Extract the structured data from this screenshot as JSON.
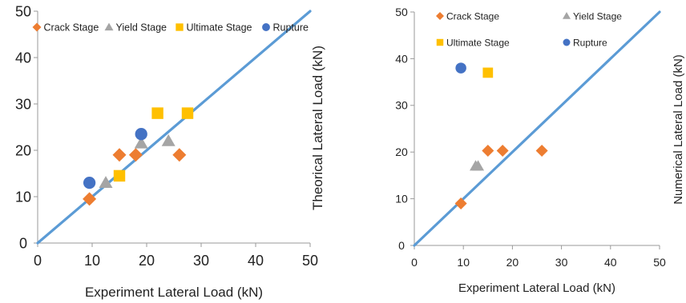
{
  "colors": {
    "crack": "#ED7D31",
    "yield": "#A5A5A5",
    "ultimate": "#FFC000",
    "rupture": "#4472C4",
    "line": "#5B9BD5"
  },
  "chart_data": [
    {
      "type": "scatter",
      "xlabel": "Experiment Lateral Load (kN)",
      "ylabel": "Theorical  Lateral Load (kN)",
      "xlim": [
        0,
        50
      ],
      "ylim": [
        0,
        50
      ],
      "xticks": [
        "0",
        "10",
        "20",
        "30",
        "40",
        "50"
      ],
      "yticks": [
        "0",
        "10",
        "20",
        "30",
        "40",
        "50"
      ],
      "legend": [
        "Crack Stage",
        "Yield Stage",
        "Ultimate Stage",
        "Rupture"
      ],
      "legend_position": "top",
      "reference_line": [
        [
          0,
          0
        ],
        [
          50,
          50
        ]
      ],
      "series": [
        {
          "name": "Crack Stage",
          "marker": "diamond",
          "points": [
            [
              9.5,
              9.5
            ],
            [
              15,
              19
            ],
            [
              18,
              19
            ],
            [
              26,
              19
            ]
          ]
        },
        {
          "name": "Yield Stage",
          "marker": "triangle",
          "points": [
            [
              12.5,
              13
            ],
            [
              19,
              21.5
            ],
            [
              24,
              22
            ]
          ]
        },
        {
          "name": "Ultimate Stage",
          "marker": "square",
          "points": [
            [
              15,
              14.5
            ],
            [
              22,
              28
            ],
            [
              27.5,
              28
            ]
          ]
        },
        {
          "name": "Rupture",
          "marker": "circle",
          "points": [
            [
              9.5,
              13
            ],
            [
              19,
              23.5
            ]
          ]
        }
      ]
    },
    {
      "type": "scatter",
      "xlabel": "Experiment Lateral Load (kN)",
      "ylabel": "Numerical  Lateral Load (kN)",
      "xlim": [
        0,
        50
      ],
      "ylim": [
        0,
        50
      ],
      "xticks": [
        "0",
        "10",
        "20",
        "30",
        "40",
        "50"
      ],
      "yticks": [
        "0",
        "10",
        "20",
        "30",
        "40",
        "50"
      ],
      "legend": [
        "Crack Stage",
        "Yield Stage",
        "Ultimate Stage",
        "Rupture"
      ],
      "legend_position": "top",
      "reference_line": [
        [
          0,
          0
        ],
        [
          50,
          50
        ]
      ],
      "series": [
        {
          "name": "Crack Stage",
          "marker": "diamond",
          "points": [
            [
              9.5,
              9
            ],
            [
              15,
              20.3
            ],
            [
              18,
              20.3
            ],
            [
              26,
              20.3
            ]
          ]
        },
        {
          "name": "Yield Stage",
          "marker": "triangle",
          "points": [
            [
              12.5,
              17
            ],
            [
              13,
              17
            ]
          ]
        },
        {
          "name": "Ultimate Stage",
          "marker": "square",
          "points": [
            [
              15,
              37
            ]
          ]
        },
        {
          "name": "Rupture",
          "marker": "circle",
          "points": [
            [
              9.5,
              38
            ]
          ]
        }
      ]
    }
  ]
}
